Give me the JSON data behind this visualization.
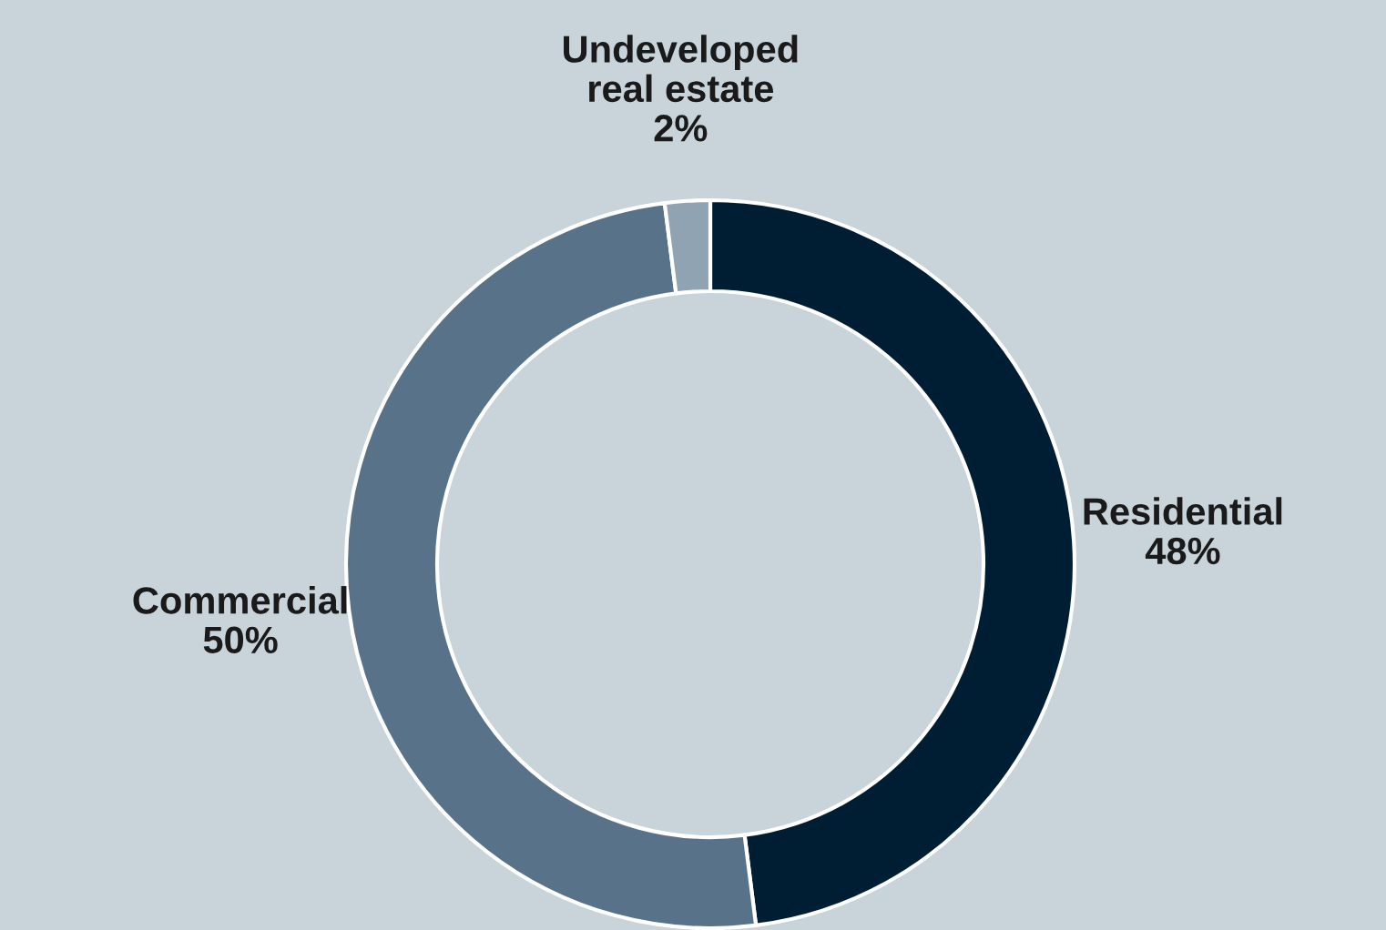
{
  "chart_data": {
    "type": "donut",
    "categories": [
      "Residential",
      "Commercial",
      "Undeveloped\nreal estate"
    ],
    "values": [
      48,
      50,
      2
    ],
    "colors": [
      "#001e33",
      "#587389",
      "#8fa3b3"
    ],
    "value_labels": [
      "48%",
      "50%",
      "2%"
    ],
    "legend": false
  }
}
